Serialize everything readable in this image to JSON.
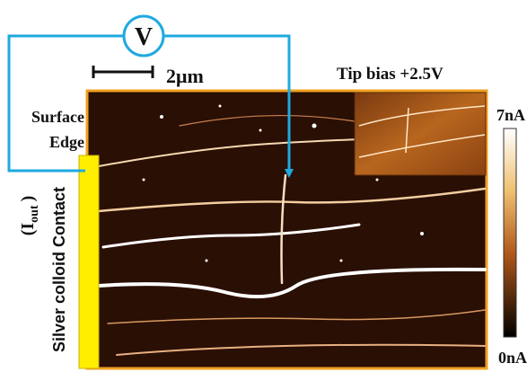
{
  "meter": {
    "label": "V"
  },
  "scale_bar": {
    "label": "2μm"
  },
  "tip_bias": "Tip bias +2.5V",
  "surface_edge": [
    "Surface",
    "Edge"
  ],
  "colorbar": {
    "max": "7nA",
    "min": "0nA"
  },
  "current": {
    "open": "(",
    "symbol": "I",
    "subscript": "out",
    "close": ")"
  },
  "contact": "Silver colloid Contact"
}
